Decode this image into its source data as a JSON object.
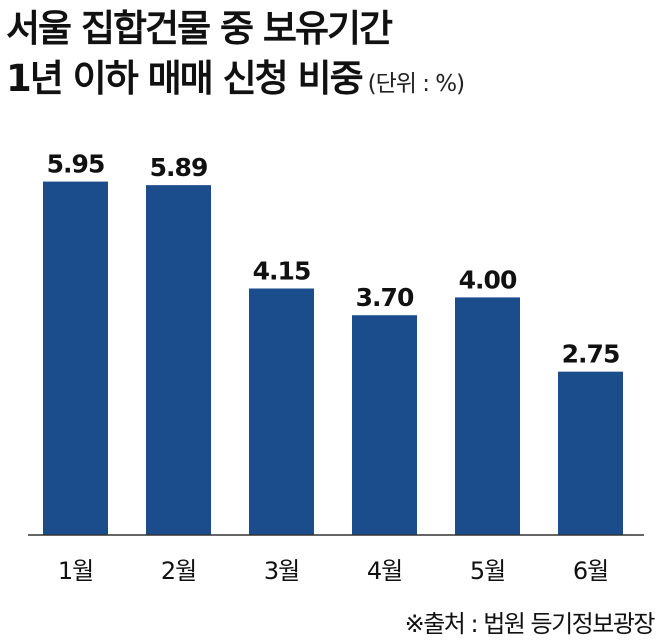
{
  "title": {
    "line1": "서울 집합건물 중 보유기간",
    "line2": "1년 이하 매매 신청 비중",
    "unit": "(단위 : %)"
  },
  "source": "※출처 : 법원 등기정보광장",
  "colors": {
    "bar": "#1b4c8c",
    "axis": "#333333",
    "text": "#111111"
  },
  "chart_data": {
    "type": "bar",
    "title": "서울 집합건물 중 보유기간 1년 이하 매매 신청 비중",
    "unit": "(단위 : %)",
    "categories": [
      "1월",
      "2월",
      "3월",
      "4월",
      "5월",
      "6월"
    ],
    "values": [
      5.95,
      5.89,
      4.15,
      3.7,
      4.0,
      2.75
    ],
    "value_labels": [
      "5.95",
      "5.89",
      "4.15",
      "3.70",
      "4.00",
      "2.75"
    ],
    "xlabel": "",
    "ylabel": "",
    "ylim": [
      0,
      6.65
    ],
    "grid": false,
    "legend": "none"
  }
}
